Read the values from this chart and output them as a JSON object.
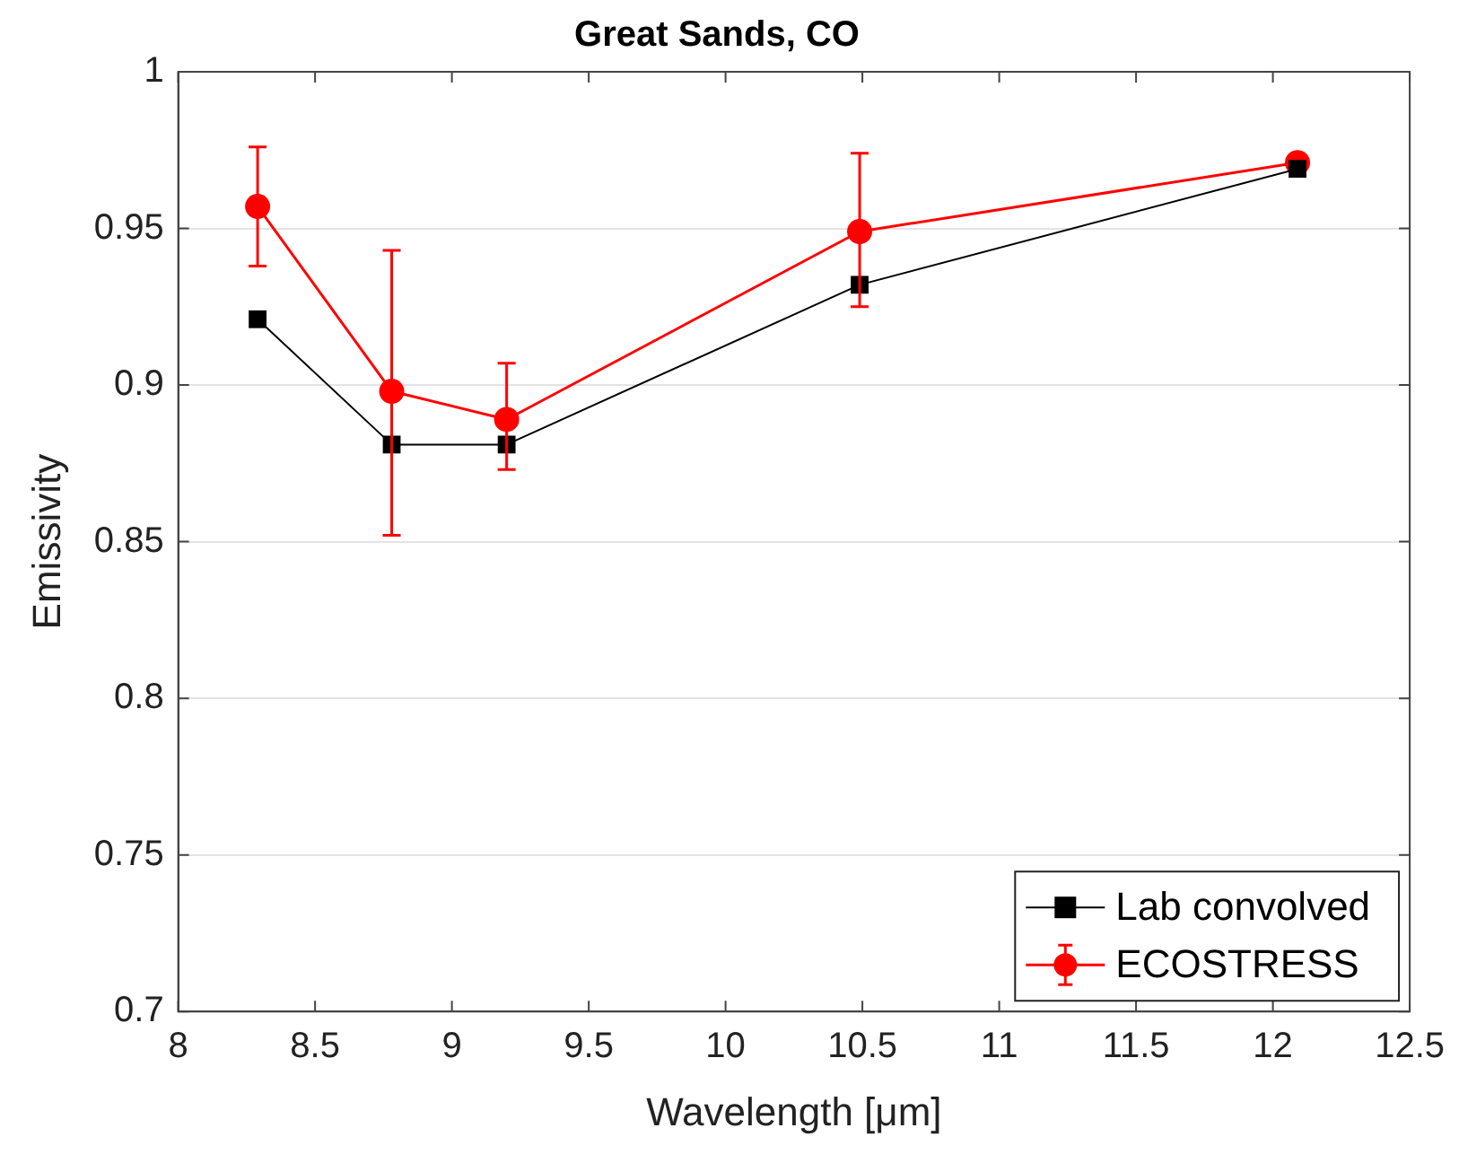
{
  "chart_data": {
    "type": "line",
    "title": "Great Sands, CO",
    "xlabel": "Wavelength [μm]",
    "ylabel": "Emissivity",
    "xlim": [
      8,
      12.5
    ],
    "xticks": [
      8,
      8.5,
      9,
      9.5,
      10,
      10.5,
      11,
      11.5,
      12,
      12.5
    ],
    "ylim": [
      0.7,
      1
    ],
    "yticks": [
      0.7,
      0.75,
      0.8,
      0.85,
      0.9,
      0.95,
      1
    ],
    "grid": "y",
    "legend": "bottom right",
    "series": [
      {
        "name": "Lab convolved",
        "color": "#000000",
        "marker": "square",
        "x": [
          8.29,
          8.78,
          9.2,
          10.49,
          12.09
        ],
        "values": [
          0.921,
          0.881,
          0.881,
          0.932,
          0.969
        ]
      },
      {
        "name": "ECOSTRESS",
        "color": "#ff0000",
        "marker": "circle",
        "x": [
          8.29,
          8.78,
          9.2,
          10.49,
          12.09
        ],
        "values": [
          0.957,
          0.898,
          0.889,
          0.949,
          0.971
        ],
        "errors": [
          [
            0.938,
            0.976
          ],
          [
            0.852,
            0.943
          ],
          [
            0.873,
            0.907
          ],
          [
            0.925,
            0.974
          ],
          null
        ]
      }
    ]
  }
}
